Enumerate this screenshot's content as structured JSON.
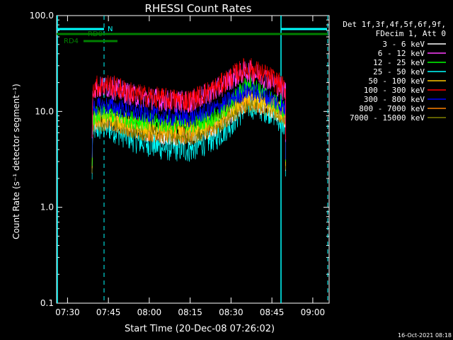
{
  "chart_data": {
    "type": "line",
    "title": "RHESSI Count Rates",
    "xlabel": "Start Time (20-Dec-08 07:26:02)",
    "ylabel": "Count Rate (s⁻¹ detector segment⁻¹)",
    "x_tick_labels": [
      "07:30",
      "07:45",
      "08:00",
      "08:15",
      "08:30",
      "08:45",
      "09:00"
    ],
    "y_tick_labels": [
      "0.1",
      "1.0",
      "10.0",
      "100.0"
    ],
    "y_scale": "log",
    "ylim": [
      0.1,
      100
    ],
    "xlim": [
      "07:26",
      "09:06"
    ],
    "grid": false,
    "legend_position": "right",
    "legend_header": [
      "Det 1f,3f,4f,5f,6f,9f,",
      "FDecim 1, Att 0"
    ],
    "footer_timestamp": "16-Oct-2021 08:18",
    "flags": [
      {
        "label": "RD0",
        "color": "#008000"
      },
      {
        "label": "RD4",
        "color": "#008000"
      },
      {
        "label": "N",
        "color": "#00ffff"
      }
    ],
    "series": [
      {
        "name": "3 - 6 keV",
        "color": "#ffffff",
        "x": [
          "07:39",
          "07:45",
          "07:55",
          "08:05",
          "08:15",
          "08:25",
          "08:30",
          "08:35",
          "08:37",
          "08:45",
          "08:50"
        ],
        "values": [
          7.5,
          8.0,
          6.5,
          5.6,
          5.5,
          7.0,
          9.0,
          12.0,
          12.5,
          10.5,
          8.0
        ]
      },
      {
        "name": "6 - 12 keV",
        "color": "#ff40ff",
        "x": [
          "07:39",
          "07:45",
          "07:55",
          "08:05",
          "08:15",
          "08:25",
          "08:30",
          "08:35",
          "08:37",
          "08:45",
          "08:50"
        ],
        "values": [
          17.5,
          18.0,
          14.5,
          13.0,
          12.5,
          17.0,
          22.0,
          26.0,
          26.0,
          21.0,
          16.0
        ]
      },
      {
        "name": "12 - 25 keV",
        "color": "#00ff00",
        "x": [
          "07:39",
          "07:45",
          "07:55",
          "08:05",
          "08:15",
          "08:25",
          "08:30",
          "08:35",
          "08:37",
          "08:45",
          "08:50"
        ],
        "values": [
          9.0,
          9.5,
          8.0,
          7.5,
          7.3,
          9.0,
          12.0,
          19.0,
          20.0,
          13.0,
          10.0
        ]
      },
      {
        "name": "25 - 50 keV",
        "color": "#00ffff",
        "x": [
          "07:39",
          "07:45",
          "07:55",
          "08:05",
          "08:15",
          "08:25",
          "08:30",
          "08:35",
          "08:37",
          "08:45",
          "08:50"
        ],
        "values": [
          6.5,
          6.8,
          5.0,
          4.2,
          4.0,
          5.5,
          7.5,
          11.0,
          11.5,
          10.0,
          7.0
        ]
      },
      {
        "name": "50 - 100 keV",
        "color": "#ffc800",
        "x": [
          "07:39",
          "07:45",
          "07:55",
          "08:05",
          "08:15",
          "08:25",
          "08:30",
          "08:35",
          "08:37",
          "08:45",
          "08:50"
        ],
        "values": [
          8.5,
          8.8,
          7.3,
          6.6,
          6.4,
          8.0,
          10.5,
          13.5,
          14.0,
          12.0,
          9.0
        ]
      },
      {
        "name": "100 - 300 keV",
        "color": "#ff0000",
        "x": [
          "07:39",
          "07:45",
          "07:55",
          "08:05",
          "08:15",
          "08:25",
          "08:30",
          "08:35",
          "08:37",
          "08:45",
          "08:50"
        ],
        "values": [
          18.0,
          19.0,
          15.0,
          13.5,
          13.0,
          18.0,
          23.0,
          28.0,
          28.0,
          22.0,
          17.0
        ]
      },
      {
        "name": "300 - 800 keV",
        "color": "#0000ff",
        "x": [
          "07:39",
          "07:45",
          "07:55",
          "08:05",
          "08:15",
          "08:25",
          "08:30",
          "08:35",
          "08:37",
          "08:45",
          "08:50"
        ],
        "values": [
          11.0,
          11.5,
          9.8,
          8.8,
          8.5,
          11.0,
          13.5,
          16.0,
          16.5,
          13.5,
          10.5
        ]
      },
      {
        "name": "800 - 7000 keV",
        "color": "#ff8000",
        "x": [
          "07:39",
          "07:45",
          "07:55",
          "08:05",
          "08:15",
          "08:25",
          "08:30",
          "08:35",
          "08:37",
          "08:45",
          "08:50"
        ],
        "values": [
          7.8,
          8.0,
          6.4,
          5.8,
          5.6,
          7.2,
          9.5,
          12.0,
          12.5,
          11.0,
          8.5
        ]
      },
      {
        "name": "7000 - 15000 keV",
        "color": "#808000",
        "x": [
          "07:39",
          "07:45",
          "07:55",
          "08:05",
          "08:15",
          "08:25",
          "08:30",
          "08:35",
          "08:37",
          "08:45",
          "08:50"
        ],
        "values": [
          7.6,
          7.8,
          6.3,
          5.7,
          5.5,
          7.0,
          9.2,
          11.8,
          12.2,
          10.8,
          8.2
        ]
      }
    ]
  }
}
